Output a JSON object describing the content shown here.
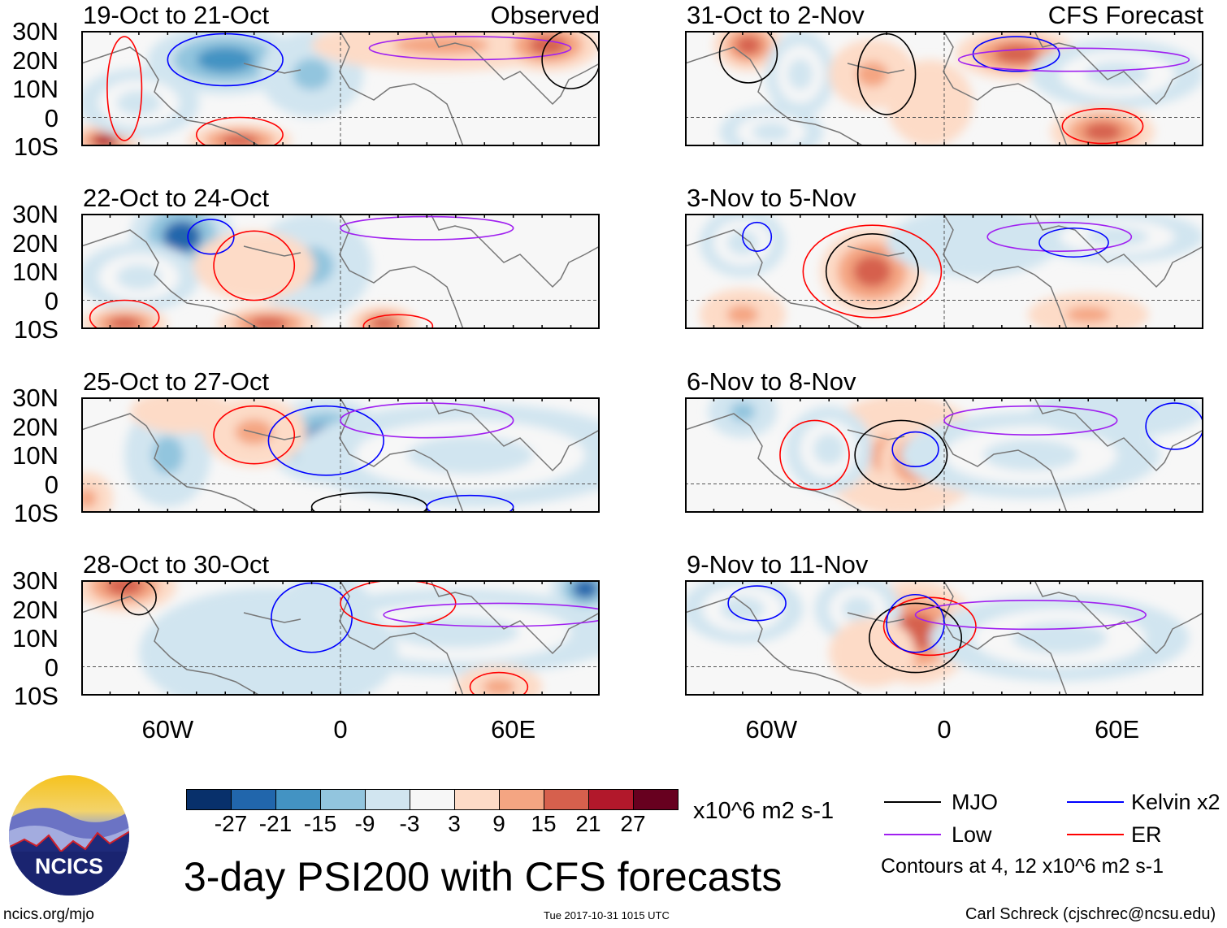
{
  "colorbar": {
    "colors": [
      "#08306b",
      "#2166ac",
      "#4393c3",
      "#92c5de",
      "#d1e5f0",
      "#f7f7f7",
      "#fddbc7",
      "#f4a582",
      "#d6604d",
      "#b2182b",
      "#67001f"
    ],
    "labels": [
      "-27",
      "-21",
      "-15",
      "-9",
      "-3",
      "3",
      "9",
      "15",
      "21",
      "27"
    ],
    "units": "x10^6 m2 s-1"
  },
  "title": "3-day PSI200 with CFS forecasts",
  "timestamp": "Tue 2017-10-31 1015 UTC",
  "site": "ncics.org/mjo",
  "author": "Carl Schreck (cjschrec@ncsu.edu)",
  "logo_text": "NCICS",
  "legend": {
    "items": [
      {
        "label": "MJO",
        "color": "#000000"
      },
      {
        "label": "Kelvin x2",
        "color": "#0000ff"
      },
      {
        "label": "Low",
        "color": "#a020f0"
      },
      {
        "label": "ER",
        "color": "#ff0000"
      }
    ],
    "note": "Contours at 4, 12 x10^6 m2 s-1"
  },
  "lat_labels": [
    "30N",
    "20N",
    "10N",
    "0",
    "10S"
  ],
  "lon_labels": [
    "60W",
    "0",
    "60E"
  ],
  "columns": [
    {
      "header": "Observed",
      "panels": [
        {
          "title": "19-Oct to 21-Oct",
          "anoms": [
            [
              -40,
              20,
              -21,
              18,
              8
            ],
            [
              -10,
              15,
              -15,
              12,
              10
            ],
            [
              -35,
              -8,
              18,
              12,
              4
            ],
            [
              -82,
              -8,
              21,
              8,
              4
            ],
            [
              35,
              25,
              9,
              30,
              6
            ],
            [
              72,
              25,
              15,
              12,
              6
            ],
            [
              -70,
              5,
              -9,
              14,
              8
            ]
          ],
          "contours": [
            [
              -40,
              20,
              20,
              9,
              "#0000ff"
            ],
            [
              -35,
              -6,
              15,
              6,
              "#ff0000"
            ],
            [
              -75,
              10,
              6,
              18,
              "#ff0000"
            ],
            [
              45,
              24,
              35,
              4,
              "#a020f0"
            ],
            [
              80,
              20,
              10,
              10,
              "#000000"
            ]
          ]
        },
        {
          "title": "22-Oct to 24-Oct",
          "anoms": [
            [
              -55,
              22,
              -27,
              12,
              10
            ],
            [
              -10,
              12,
              -15,
              14,
              12
            ],
            [
              -70,
              8,
              -9,
              14,
              8
            ],
            [
              -75,
              -8,
              15,
              10,
              4
            ],
            [
              -25,
              -8,
              15,
              12,
              4
            ],
            [
              15,
              -8,
              15,
              8,
              4
            ],
            [
              -30,
              12,
              6,
              14,
              8
            ]
          ],
          "contours": [
            [
              -45,
              22,
              8,
              6,
              "#0000ff"
            ],
            [
              -30,
              12,
              14,
              12,
              "#ff0000"
            ],
            [
              30,
              25,
              30,
              4,
              "#a020f0"
            ],
            [
              -75,
              -6,
              12,
              6,
              "#ff0000"
            ],
            [
              20,
              -9,
              12,
              4,
              "#ff0000"
            ]
          ]
        },
        {
          "title": "25-Oct to 27-Oct",
          "anoms": [
            [
              -5,
              15,
              -27,
              14,
              10
            ],
            [
              -60,
              10,
              -15,
              10,
              12
            ],
            [
              45,
              10,
              -9,
              40,
              12
            ],
            [
              -30,
              18,
              9,
              12,
              8
            ],
            [
              -88,
              -5,
              9,
              6,
              6
            ],
            [
              -55,
              25,
              6,
              12,
              5
            ]
          ],
          "contours": [
            [
              -30,
              17,
              14,
              10,
              "#ff0000"
            ],
            [
              -5,
              15,
              20,
              12,
              "#0000ff"
            ],
            [
              30,
              22,
              30,
              6,
              "#a020f0"
            ],
            [
              10,
              -8,
              20,
              5,
              "#000000"
            ],
            [
              45,
              -8,
              15,
              4,
              "#0000ff"
            ]
          ]
        },
        {
          "title": "28-Oct to 30-Oct",
          "anoms": [
            [
              -5,
              15,
              -15,
              12,
              12
            ],
            [
              40,
              12,
              -9,
              40,
              10
            ],
            [
              85,
              27,
              -27,
              8,
              6
            ],
            [
              -75,
              28,
              15,
              12,
              6
            ],
            [
              55,
              -7,
              9,
              10,
              5
            ],
            [
              -25,
              5,
              -6,
              30,
              15
            ]
          ],
          "contours": [
            [
              -10,
              17,
              14,
              12,
              "#0000ff"
            ],
            [
              -70,
              24,
              6,
              6,
              "#000000"
            ],
            [
              20,
              22,
              20,
              8,
              "#ff0000"
            ],
            [
              55,
              18,
              40,
              4,
              "#a020f0"
            ],
            [
              55,
              -7,
              10,
              5,
              "#ff0000"
            ]
          ]
        }
      ]
    },
    {
      "header": "CFS Forecast",
      "panels": [
        {
          "title": "31-Oct to 2-Nov",
          "anoms": [
            [
              -68,
              25,
              15,
              8,
              6
            ],
            [
              -50,
              15,
              -9,
              8,
              10
            ],
            [
              -25,
              15,
              9,
              10,
              8
            ],
            [
              25,
              22,
              15,
              14,
              6
            ],
            [
              60,
              15,
              -9,
              20,
              8
            ],
            [
              55,
              -5,
              15,
              12,
              6
            ],
            [
              -60,
              -5,
              -9,
              12,
              6
            ],
            [
              -5,
              5,
              6,
              10,
              10
            ]
          ],
          "contours": [
            [
              -68,
              22,
              10,
              10,
              "#000000"
            ],
            [
              -20,
              15,
              10,
              14,
              "#000000"
            ],
            [
              25,
              22,
              15,
              6,
              "#0000ff"
            ],
            [
              45,
              20,
              40,
              4,
              "#a020f0"
            ],
            [
              55,
              -3,
              14,
              6,
              "#ff0000"
            ]
          ]
        },
        {
          "title": "3-Nov to 5-Nov",
          "anoms": [
            [
              -25,
              10,
              15,
              12,
              10
            ],
            [
              -70,
              20,
              -9,
              10,
              8
            ],
            [
              60,
              22,
              -9,
              20,
              6
            ],
            [
              50,
              -5,
              9,
              14,
              5
            ],
            [
              -70,
              -5,
              9,
              10,
              6
            ],
            [
              10,
              20,
              -6,
              20,
              8
            ]
          ],
          "contours": [
            [
              -25,
              10,
              16,
              13,
              "#000000"
            ],
            [
              -25,
              10,
              24,
              16,
              "#ff0000"
            ],
            [
              40,
              22,
              25,
              5,
              "#a020f0"
            ],
            [
              45,
              20,
              12,
              5,
              "#0000ff"
            ],
            [
              -65,
              22,
              5,
              5,
              "#0000ff"
            ]
          ]
        },
        {
          "title": "6-Nov to 8-Nov",
          "anoms": [
            [
              -70,
              25,
              -15,
              8,
              6
            ],
            [
              -15,
              10,
              9,
              20,
              14
            ],
            [
              -10,
              8,
              15,
              8,
              8
            ],
            [
              -40,
              12,
              -9,
              10,
              10
            ],
            [
              30,
              10,
              -9,
              30,
              10
            ],
            [
              60,
              25,
              -6,
              20,
              6
            ]
          ],
          "contours": [
            [
              -15,
              10,
              16,
              12,
              "#000000"
            ],
            [
              -10,
              12,
              8,
              6,
              "#0000ff"
            ],
            [
              -45,
              10,
              12,
              12,
              "#ff0000"
            ],
            [
              30,
              22,
              30,
              5,
              "#a020f0"
            ],
            [
              80,
              20,
              10,
              8,
              "#0000ff"
            ]
          ]
        },
        {
          "title": "9-Nov to 11-Nov",
          "anoms": [
            [
              -10,
              12,
              15,
              14,
              12
            ],
            [
              -70,
              20,
              -9,
              14,
              8
            ],
            [
              -30,
              20,
              -9,
              10,
              8
            ],
            [
              40,
              10,
              -9,
              30,
              10
            ],
            [
              -25,
              5,
              6,
              10,
              8
            ]
          ],
          "contours": [
            [
              -10,
              10,
              16,
              12,
              "#000000"
            ],
            [
              -5,
              14,
              16,
              10,
              "#ff0000"
            ],
            [
              -10,
              15,
              10,
              10,
              "#0000ff"
            ],
            [
              30,
              18,
              40,
              5,
              "#a020f0"
            ],
            [
              -65,
              22,
              10,
              6,
              "#0000ff"
            ]
          ]
        }
      ]
    }
  ]
}
